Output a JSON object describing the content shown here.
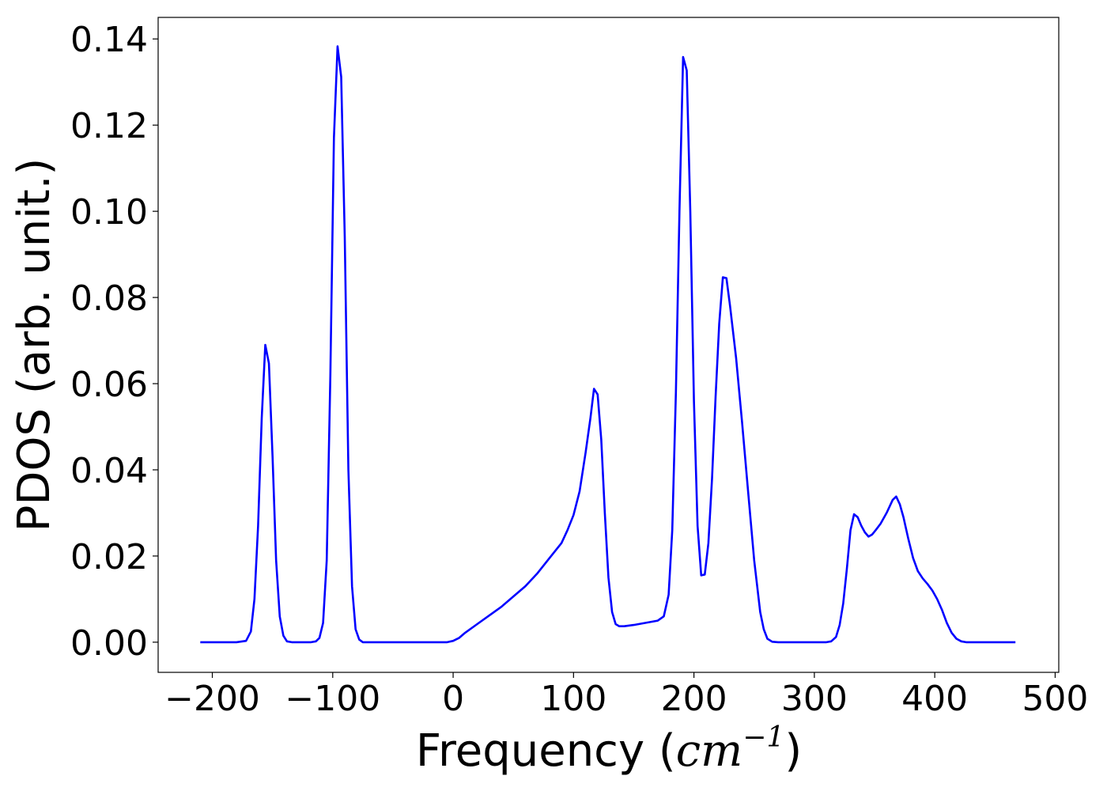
{
  "chart_data": {
    "type": "line",
    "title": "",
    "xlabel_text": "Frequency (",
    "xlabel_unit": "cm",
    "xlabel_exp": "−1",
    "xlabel_close": ")",
    "ylabel": "PDOS (arb. unit.)",
    "xlim": [
      -245,
      503
    ],
    "ylim": [
      -0.007,
      0.145
    ],
    "xticks": [
      -200,
      -100,
      0,
      100,
      200,
      300,
      400,
      500
    ],
    "xtick_labels": [
      "−200",
      "−100",
      "0",
      "100",
      "200",
      "300",
      "400",
      "500"
    ],
    "yticks": [
      0.0,
      0.02,
      0.04,
      0.06,
      0.08,
      0.1,
      0.12,
      0.14
    ],
    "ytick_labels": [
      "0.00",
      "0.02",
      "0.04",
      "0.06",
      "0.08",
      "0.10",
      "0.12",
      "0.14"
    ],
    "grid": false,
    "line_color": "#0000ff",
    "series": [
      {
        "points": [
          [
            -210,
            0.0
          ],
          [
            -180,
            0.0
          ],
          [
            -172,
            0.0003
          ],
          [
            -168,
            0.0025
          ],
          [
            -165,
            0.01
          ],
          [
            -162,
            0.027
          ],
          [
            -159,
            0.052
          ],
          [
            -156,
            0.069
          ],
          [
            -153,
            0.0647
          ],
          [
            -150,
            0.043
          ],
          [
            -147,
            0.019
          ],
          [
            -144,
            0.006
          ],
          [
            -141,
            0.0015
          ],
          [
            -138,
            0.0002
          ],
          [
            -134,
            0.0
          ],
          [
            -118,
            0.0
          ],
          [
            -114,
            0.0002
          ],
          [
            -111,
            0.001
          ],
          [
            -108,
            0.0045
          ],
          [
            -105,
            0.019
          ],
          [
            -102,
            0.062
          ],
          [
            -99,
            0.117
          ],
          [
            -96,
            0.1383
          ],
          [
            -93,
            0.1312
          ],
          [
            -90,
            0.094
          ],
          [
            -87,
            0.04
          ],
          [
            -84,
            0.013
          ],
          [
            -81,
            0.003
          ],
          [
            -78,
            0.0006
          ],
          [
            -75,
            0.0
          ],
          [
            -5,
            0.0
          ],
          [
            0,
            0.0003
          ],
          [
            5,
            0.001
          ],
          [
            10,
            0.0022
          ],
          [
            20,
            0.0042
          ],
          [
            30,
            0.0062
          ],
          [
            40,
            0.0082
          ],
          [
            50,
            0.0106
          ],
          [
            60,
            0.013
          ],
          [
            70,
            0.016
          ],
          [
            80,
            0.0195
          ],
          [
            90,
            0.023
          ],
          [
            95,
            0.026
          ],
          [
            100,
            0.0295
          ],
          [
            105,
            0.035
          ],
          [
            110,
            0.044
          ],
          [
            114,
            0.052
          ],
          [
            117,
            0.0588
          ],
          [
            120,
            0.0575
          ],
          [
            123,
            0.047
          ],
          [
            126,
            0.03
          ],
          [
            129,
            0.015
          ],
          [
            132,
            0.007
          ],
          [
            135,
            0.0042
          ],
          [
            138,
            0.0037
          ],
          [
            142,
            0.0037
          ],
          [
            150,
            0.004
          ],
          [
            160,
            0.0045
          ],
          [
            170,
            0.005
          ],
          [
            175,
            0.006
          ],
          [
            179,
            0.011
          ],
          [
            182,
            0.026
          ],
          [
            185,
            0.058
          ],
          [
            188,
            0.1
          ],
          [
            191,
            0.1358
          ],
          [
            194,
            0.1327
          ],
          [
            197,
            0.1
          ],
          [
            200,
            0.056
          ],
          [
            203,
            0.027
          ],
          [
            206,
            0.0155
          ],
          [
            209,
            0.0157
          ],
          [
            212,
            0.023
          ],
          [
            215,
            0.038
          ],
          [
            218,
            0.057
          ],
          [
            221,
            0.074
          ],
          [
            224,
            0.0847
          ],
          [
            227,
            0.0845
          ],
          [
            230,
            0.078
          ],
          [
            235,
            0.066
          ],
          [
            240,
            0.051
          ],
          [
            245,
            0.035
          ],
          [
            250,
            0.019
          ],
          [
            255,
            0.007
          ],
          [
            258,
            0.003
          ],
          [
            261,
            0.0008
          ],
          [
            265,
            0.0001
          ],
          [
            270,
            0.0
          ],
          [
            310,
            0.0
          ],
          [
            314,
            0.0002
          ],
          [
            318,
            0.0012
          ],
          [
            321,
            0.004
          ],
          [
            324,
            0.009
          ],
          [
            327,
            0.017
          ],
          [
            330,
            0.026
          ],
          [
            333,
            0.0297
          ],
          [
            336,
            0.029
          ],
          [
            339,
            0.027
          ],
          [
            342,
            0.0255
          ],
          [
            345,
            0.0245
          ],
          [
            348,
            0.025
          ],
          [
            351,
            0.026
          ],
          [
            355,
            0.0275
          ],
          [
            360,
            0.03
          ],
          [
            365,
            0.033
          ],
          [
            368,
            0.0338
          ],
          [
            371,
            0.032
          ],
          [
            374,
            0.029
          ],
          [
            378,
            0.024
          ],
          [
            382,
            0.0195
          ],
          [
            386,
            0.0165
          ],
          [
            390,
            0.0148
          ],
          [
            394,
            0.0135
          ],
          [
            398,
            0.012
          ],
          [
            402,
            0.01
          ],
          [
            406,
            0.0075
          ],
          [
            410,
            0.0045
          ],
          [
            414,
            0.0022
          ],
          [
            418,
            0.0008
          ],
          [
            422,
            0.0002
          ],
          [
            426,
            0.0
          ],
          [
            467,
            0.0
          ]
        ]
      }
    ]
  }
}
